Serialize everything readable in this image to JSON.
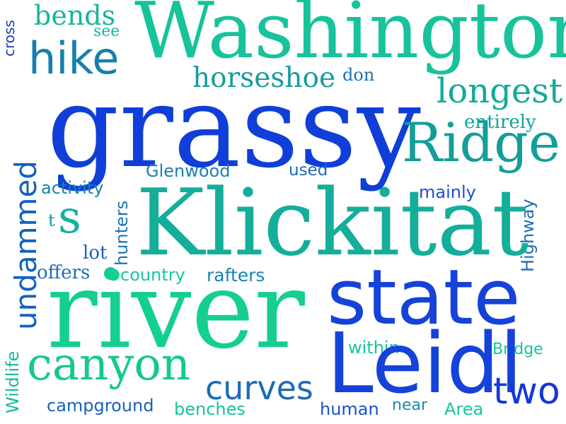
{
  "words": {
    "grassy": {
      "text": "grassy",
      "color": "#0f3fd8"
    },
    "klickitat": {
      "text": "Klickitat",
      "color": "#14ae9a"
    },
    "river": {
      "text": "river",
      "color": "#14cf8f"
    },
    "state": {
      "text": "state",
      "color": "#1542d8"
    },
    "washington": {
      "text": "Washington",
      "color": "#16c39a"
    },
    "leidl": {
      "text": "Leidl",
      "color": "#1542d8"
    },
    "ridge": {
      "text": "Ridge",
      "color": "#139e99"
    },
    "canyon": {
      "text": "canyon",
      "color": "#16c88e"
    },
    "hike": {
      "text": "hike",
      "color": "#1680ac"
    },
    "undammed": {
      "text": "undammed",
      "color": "#1262bd"
    },
    "longest": {
      "text": "longest",
      "color": "#14a99b"
    },
    "curves": {
      "text": "curves",
      "color": "#1d6bb6"
    },
    "two": {
      "text": "two",
      "color": "#1437d8"
    },
    "horseshoe": {
      "text": "horseshoe",
      "color": "#179c9d"
    },
    "bends": {
      "text": "bends",
      "color": "#16b69b"
    },
    "s": {
      "text": "s",
      "color": "#14b29b"
    },
    "see": {
      "text": "see",
      "color": "#12b7a3"
    },
    "don": {
      "text": "don",
      "color": "#1a72b6"
    },
    "entirely": {
      "text": "entirely",
      "color": "#13a19a"
    },
    "glenwood": {
      "text": "Glenwood",
      "color": "#1a7fb2"
    },
    "used": {
      "text": "used",
      "color": "#1d68b8"
    },
    "activity": {
      "text": "activity",
      "color": "#1585ac"
    },
    "mainly": {
      "text": "mainly",
      "color": "#1e4fcb"
    },
    "t": {
      "text": "t",
      "color": "#1693a5"
    },
    "hunters": {
      "text": "hunters",
      "color": "#1a78b0"
    },
    "highway": {
      "text": "Highway",
      "color": "#1a6eb6"
    },
    "lot": {
      "text": "lot",
      "color": "#1b63b9"
    },
    "offers": {
      "text": "offers",
      "color": "#1a6fb5"
    },
    "country": {
      "text": "country",
      "color": "#16c7a0"
    },
    "rafters": {
      "text": "rafters",
      "color": "#1884b0"
    },
    "cross": {
      "text": "cross",
      "color": "#1a3dc5"
    },
    "within": {
      "text": "within",
      "color": "#18c59a"
    },
    "bridge": {
      "text": "Bridge",
      "color": "#16c39c"
    },
    "wildlife": {
      "text": "Wildlife",
      "color": "#15b99a"
    },
    "campground": {
      "text": "campground",
      "color": "#1b60bd"
    },
    "benches": {
      "text": "benches",
      "color": "#16c49c"
    },
    "human": {
      "text": "human",
      "color": "#1c52c6"
    },
    "near": {
      "text": "near",
      "color": "#1a8bb0"
    },
    "area": {
      "text": "Area",
      "color": "#16c89c"
    }
  },
  "marks": {
    "dot_color": "#16c99a"
  }
}
